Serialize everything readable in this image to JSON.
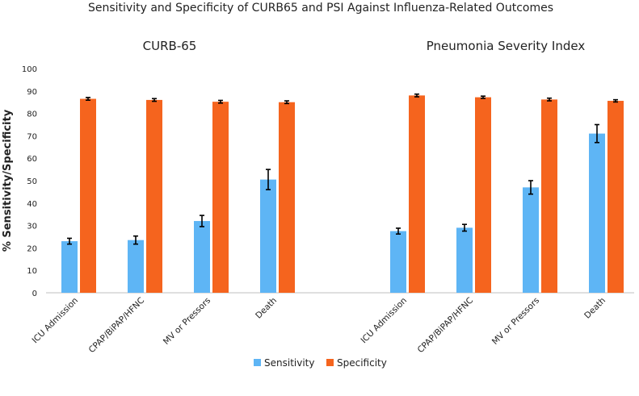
{
  "chart_data": {
    "type": "bar",
    "title": "Sensitivity and Specificity of CURB65 and PSI Against Influenza-Related Outcomes",
    "ylabel": "% Sensitivity/Specificity",
    "ylim": [
      0,
      100
    ],
    "yticks": [
      0,
      10,
      20,
      30,
      40,
      50,
      60,
      70,
      80,
      90,
      100
    ],
    "grid": false,
    "legend": "bottom",
    "categories": [
      "ICU Admission",
      "CPAP/BiPAP/HFNC",
      "MV or Pressors",
      "Death"
    ],
    "groups": [
      {
        "label": "CURB-65",
        "sensitivity": [
          23,
          23.5,
          32,
          50.5
        ],
        "sensitivity_err": [
          1.3,
          1.8,
          2.5,
          4.5
        ],
        "specificity": [
          86.5,
          86,
          85.2,
          85
        ],
        "specificity_err": [
          0.6,
          0.6,
          0.6,
          0.6
        ]
      },
      {
        "label": "Pneumonia Severity Index",
        "sensitivity": [
          27.5,
          29,
          47,
          71
        ],
        "sensitivity_err": [
          1.3,
          1.5,
          3,
          4
        ],
        "specificity": [
          88,
          87.2,
          86.2,
          85.6
        ],
        "specificity_err": [
          0.6,
          0.5,
          0.6,
          0.5
        ]
      }
    ],
    "series": [
      {
        "name": "Sensitivity",
        "color": "#5eb5f5"
      },
      {
        "name": "Specificity",
        "color": "#f5641e"
      }
    ]
  }
}
